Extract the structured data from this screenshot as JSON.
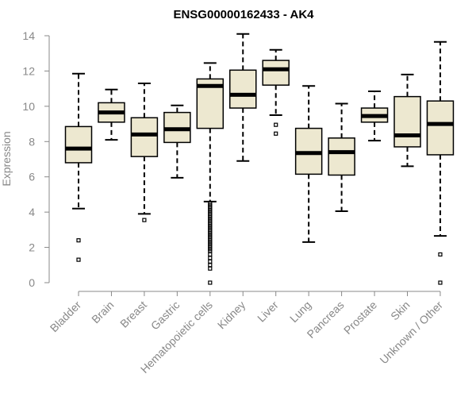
{
  "chart_data": {
    "type": "box",
    "title": "ENSG00000162433 - AK4",
    "xlabel": "",
    "ylabel": "Expression",
    "ylim": [
      0,
      14
    ],
    "yticks": [
      0,
      2,
      4,
      6,
      8,
      10,
      12,
      14
    ],
    "grid": false,
    "box_fill": "#ede8d0",
    "categories": [
      "Bladder",
      "Brain",
      "Breast",
      "Gastric",
      "Hematopoietic cells",
      "Kidney",
      "Liver",
      "Lung",
      "Pancreas",
      "Prostate",
      "Skin",
      "Unknown / Other"
    ],
    "boxes": [
      {
        "whislo": 4.2,
        "q1": 6.8,
        "med": 7.6,
        "q3": 8.85,
        "whishi": 11.85,
        "fliers": [
          2.4,
          1.3
        ]
      },
      {
        "whislo": 8.1,
        "q1": 9.1,
        "med": 9.65,
        "q3": 10.2,
        "whishi": 10.95,
        "fliers": []
      },
      {
        "whislo": 3.9,
        "q1": 7.15,
        "med": 8.4,
        "q3": 9.35,
        "whishi": 11.3,
        "fliers": [
          3.55
        ]
      },
      {
        "whislo": 5.95,
        "q1": 7.95,
        "med": 8.7,
        "q3": 9.65,
        "whishi": 10.05,
        "fliers": []
      },
      {
        "whislo": 4.6,
        "q1": 8.75,
        "med": 11.15,
        "q3": 11.55,
        "whishi": 12.45,
        "fliers": [
          4.5,
          4.4,
          4.3,
          4.2,
          4.1,
          4.0,
          3.9,
          3.8,
          3.7,
          3.6,
          3.5,
          3.4,
          3.3,
          3.2,
          3.1,
          3.0,
          2.9,
          2.8,
          2.7,
          2.6,
          2.5,
          2.4,
          2.3,
          2.2,
          2.1,
          2.0,
          1.9,
          1.8,
          1.6,
          1.4,
          1.2,
          1.0,
          0.8,
          0.0
        ]
      },
      {
        "whislo": 6.9,
        "q1": 9.9,
        "med": 10.65,
        "q3": 12.05,
        "whishi": 14.1,
        "fliers": []
      },
      {
        "whislo": 9.5,
        "q1": 11.2,
        "med": 12.1,
        "q3": 12.6,
        "whishi": 13.2,
        "fliers": [
          8.95,
          8.45
        ]
      },
      {
        "whislo": 2.3,
        "q1": 6.15,
        "med": 7.35,
        "q3": 8.75,
        "whishi": 11.15,
        "fliers": []
      },
      {
        "whislo": 4.05,
        "q1": 6.1,
        "med": 7.4,
        "q3": 8.2,
        "whishi": 10.15,
        "fliers": []
      },
      {
        "whislo": 8.05,
        "q1": 9.1,
        "med": 9.45,
        "q3": 9.9,
        "whishi": 10.85,
        "fliers": []
      },
      {
        "whislo": 6.6,
        "q1": 7.7,
        "med": 8.35,
        "q3": 10.55,
        "whishi": 11.8,
        "fliers": []
      },
      {
        "whislo": 2.65,
        "q1": 7.25,
        "med": 9.0,
        "q3": 10.3,
        "whishi": 13.65,
        "fliers": [
          1.6,
          0.0
        ]
      }
    ]
  }
}
